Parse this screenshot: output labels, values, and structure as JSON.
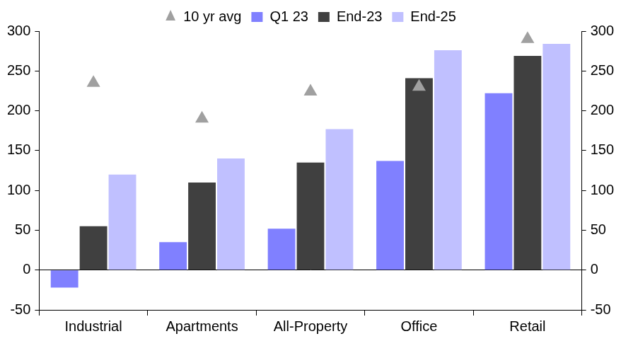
{
  "chart_data": {
    "type": "bar",
    "categories": [
      "Industrial",
      "Apartments",
      "All-Property",
      "Office",
      "Retail"
    ],
    "series": [
      {
        "name": "Q1 23",
        "color": "#8080ff",
        "values": [
          -22,
          35,
          52,
          137,
          222
        ]
      },
      {
        "name": "End-23",
        "color": "#404040",
        "values": [
          55,
          110,
          135,
          241,
          269
        ]
      },
      {
        "name": "End-25",
        "color": "#c0c0ff",
        "values": [
          120,
          140,
          177,
          276,
          284
        ]
      },
      {
        "name": "10 yr avg",
        "color": "#a0a0a0",
        "type": "scatter",
        "marker": "triangle",
        "values": [
          235,
          190,
          224,
          230,
          290
        ]
      }
    ],
    "ylim": [
      -50,
      300
    ],
    "yticks": [
      -50,
      0,
      50,
      100,
      150,
      200,
      250,
      300
    ],
    "y2lim": [
      -50,
      300
    ],
    "y2ticks": [
      -50,
      0,
      50,
      100,
      150,
      200,
      250,
      300
    ],
    "grid": false,
    "legend": "top"
  }
}
